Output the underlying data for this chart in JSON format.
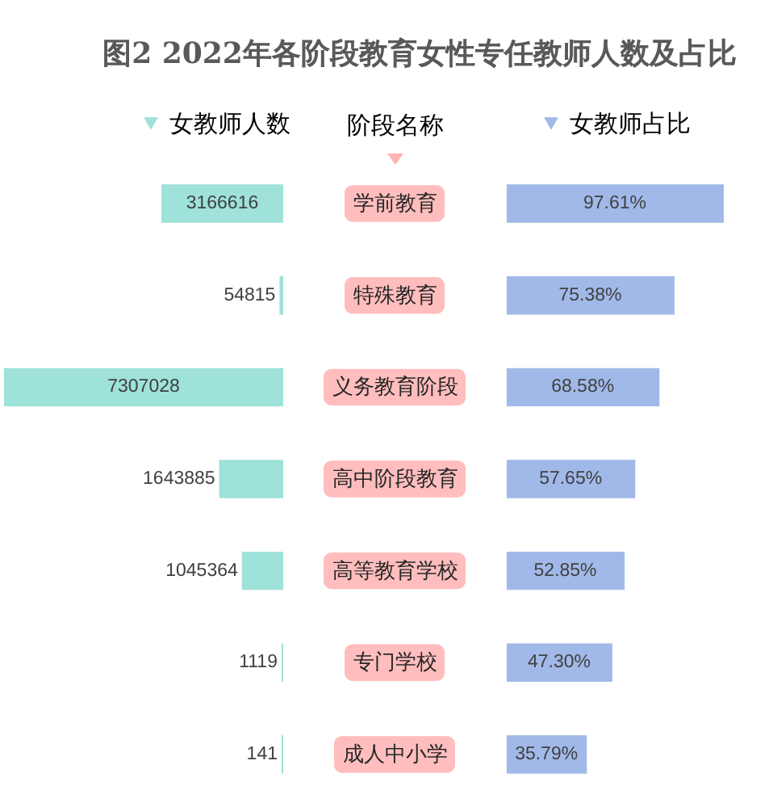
{
  "chart_data": [
    {
      "type": "bar",
      "orientation": "horizontal",
      "title": "图2 2022年各阶段教育女性专任教师人数及占比",
      "ylabel": "阶段名称",
      "categories": [
        "学前教育",
        "特殊教育",
        "义务教育阶段",
        "高中阶段教育",
        "高等教育学校",
        "专门学校",
        "成人中小学"
      ],
      "series": [
        {
          "name": "女教师人数",
          "color": "#9ee2d9",
          "values": [
            3166616,
            54815,
            7307028,
            1643885,
            1045364,
            1119,
            141
          ]
        }
      ],
      "data_labels": true,
      "legend": "top",
      "tick_labels": "y"
    },
    {
      "type": "bar",
      "orientation": "horizontal",
      "categories": [
        null,
        null,
        null,
        null,
        null,
        null,
        null
      ],
      "series": [
        {
          "name": "女教师占比",
          "color": "#a1b9e8",
          "values": [
            97.61,
            75.38,
            68.58,
            57.65,
            52.85,
            47.3,
            35.79
          ],
          "value_labels": [
            "97.61%",
            "75.38%",
            "68.58%",
            "57.65%",
            "52.85%",
            "47.30%",
            "35.79%"
          ]
        }
      ],
      "legend": "top",
      "tick_labels": false
    }
  ]
}
